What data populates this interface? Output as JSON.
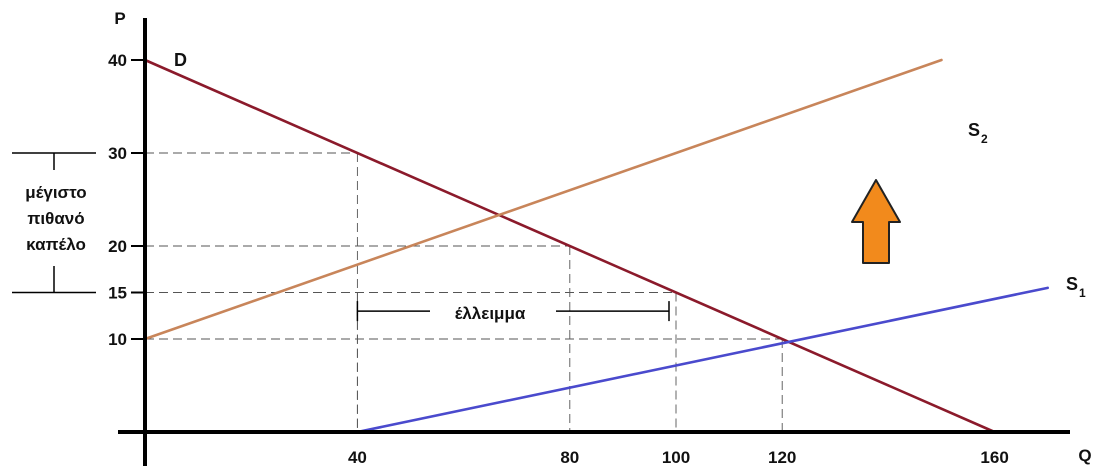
{
  "chart_data": {
    "type": "line",
    "title": "",
    "xlabel": "Q",
    "ylabel": "P",
    "xlim": [
      0,
      170
    ],
    "ylim": [
      0,
      42
    ],
    "x_ticks": [
      40,
      80,
      100,
      120,
      160
    ],
    "y_ticks": [
      10,
      15,
      20,
      30,
      40
    ],
    "series": [
      {
        "name": "D",
        "x": [
          0,
          160
        ],
        "y": [
          40,
          0
        ],
        "color": "#8b1a2b"
      },
      {
        "name": "S",
        "subscript": "2",
        "x": [
          0,
          150
        ],
        "y": [
          10,
          40
        ],
        "color": "#c8855a"
      },
      {
        "name": "S",
        "subscript": "1",
        "x": [
          40,
          170
        ],
        "y": [
          0,
          15.5
        ],
        "color": "#4a4acd"
      }
    ],
    "guides": [
      {
        "x": 40,
        "y": 30
      },
      {
        "x": 40,
        "y": 15
      },
      {
        "x": 80,
        "y": 20
      },
      {
        "x": 100,
        "y": 15
      },
      {
        "x": 120,
        "y": 10
      }
    ],
    "annotations": {
      "shortage_label": "έλλειμμα",
      "shortage_range": [
        40,
        100
      ],
      "shortage_level": 13,
      "price_range_label": [
        "μέγιστο",
        "πιθανό",
        "καπέλο"
      ],
      "price_range": [
        15,
        30
      ],
      "arrow": {
        "direction": "up",
        "color": "#f28a1c",
        "stroke": "#222222"
      }
    },
    "axis_color": "#000000",
    "guide_color": "#555555"
  }
}
